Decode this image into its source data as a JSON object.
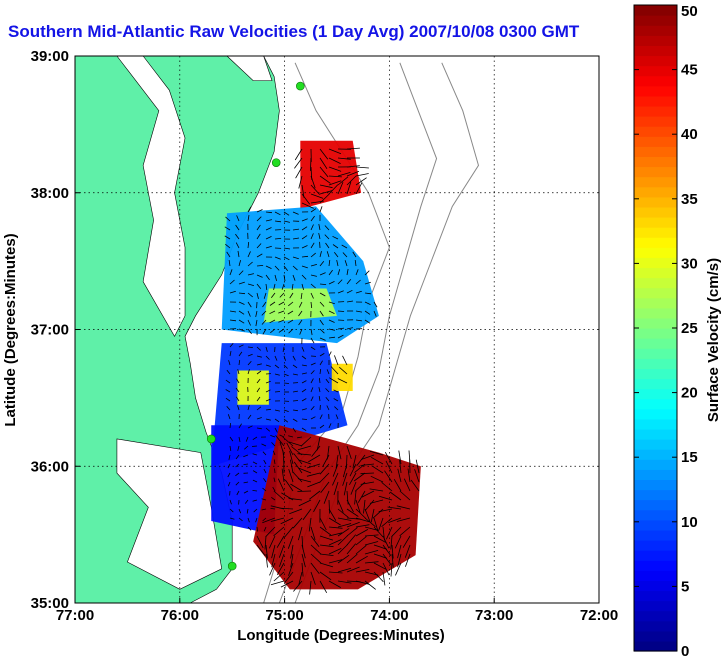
{
  "chart_data": {
    "type": "heatmap",
    "title": "Southern Mid-Atlantic Raw Velocities (1 Day Avg) 2007/10/08 0300 GMT",
    "xlabel": "Longitude (Degrees:Minutes)",
    "ylabel": "Latitude (Degrees:Minutes)",
    "xlim": [
      -77,
      -72
    ],
    "ylim": [
      35,
      39
    ],
    "x_ticks": [
      -77,
      -76,
      -75,
      -74,
      -73,
      -72
    ],
    "x_tick_labels": [
      "77:00",
      "76:00",
      "75:00",
      "74:00",
      "73:00",
      "72:00"
    ],
    "y_ticks": [
      35,
      36,
      37,
      38,
      39
    ],
    "y_tick_labels": [
      "35:00",
      "36:00",
      "37:00",
      "38:00",
      "39:00"
    ],
    "grid": true,
    "colorbar": {
      "label": "Surface Velocity (cm/s)",
      "min": 0,
      "max": 50,
      "ticks": [
        0,
        5,
        10,
        15,
        20,
        25,
        30,
        35,
        40,
        45,
        50
      ],
      "colormap": "jet"
    },
    "land_color": "#5ff0a8",
    "station_color": "#22dd22",
    "stations": [
      {
        "lon": -74.85,
        "lat": 38.78
      },
      {
        "lon": -75.08,
        "lat": 38.22
      },
      {
        "lon": -75.7,
        "lat": 36.2
      },
      {
        "lon": -75.5,
        "lat": 35.27
      }
    ],
    "regions": [
      {
        "speed": 45,
        "polygon": [
          [
            -74.85,
            38.38
          ],
          [
            -74.35,
            38.38
          ],
          [
            -74.27,
            38.0
          ],
          [
            -74.85,
            37.88
          ]
        ]
      },
      {
        "speed": 14,
        "polygon": [
          [
            -75.55,
            37.85
          ],
          [
            -74.7,
            37.9
          ],
          [
            -74.25,
            37.5
          ],
          [
            -74.1,
            37.1
          ],
          [
            -74.5,
            36.9
          ],
          [
            -75.6,
            37.0
          ]
        ]
      },
      {
        "speed": 9,
        "polygon": [
          [
            -75.6,
            36.9
          ],
          [
            -74.6,
            36.9
          ],
          [
            -74.4,
            36.3
          ],
          [
            -75.7,
            36.0
          ]
        ]
      },
      {
        "speed": 27,
        "polygon": [
          [
            -75.15,
            37.3
          ],
          [
            -74.6,
            37.3
          ],
          [
            -74.5,
            37.1
          ],
          [
            -75.2,
            37.05
          ]
        ]
      },
      {
        "speed": 30,
        "polygon": [
          [
            -75.45,
            36.7
          ],
          [
            -75.15,
            36.7
          ],
          [
            -75.15,
            36.45
          ],
          [
            -75.45,
            36.45
          ]
        ]
      },
      {
        "speed": 7,
        "polygon": [
          [
            -75.7,
            36.3
          ],
          [
            -75.05,
            36.3
          ],
          [
            -75.1,
            35.5
          ],
          [
            -75.7,
            35.6
          ]
        ]
      },
      {
        "speed": 48,
        "polygon": [
          [
            -75.05,
            36.3
          ],
          [
            -74.1,
            36.1
          ],
          [
            -73.7,
            36.0
          ],
          [
            -73.75,
            35.35
          ],
          [
            -74.3,
            35.1
          ],
          [
            -74.95,
            35.1
          ],
          [
            -75.3,
            35.45
          ]
        ]
      },
      {
        "speed": 33,
        "polygon": [
          [
            -74.55,
            36.75
          ],
          [
            -74.35,
            36.75
          ],
          [
            -74.35,
            36.55
          ],
          [
            -74.55,
            36.55
          ]
        ]
      }
    ]
  },
  "title_text": "Southern Mid-Atlantic Raw Velocities (1 Day Avg) 2007/10/08 0300 GMT"
}
